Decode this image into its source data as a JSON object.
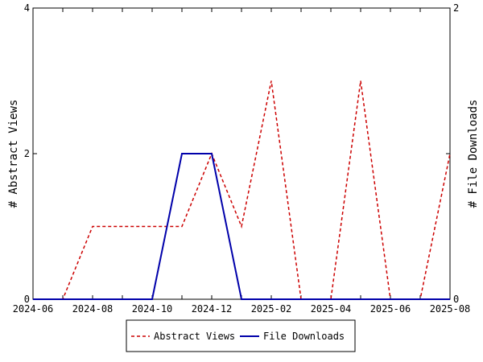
{
  "chart_data": {
    "type": "line",
    "x": [
      "2024-06",
      "2024-07",
      "2024-08",
      "2024-09",
      "2024-10",
      "2024-11",
      "2024-12",
      "2025-01",
      "2025-02",
      "2025-03",
      "2025-04",
      "2025-05",
      "2025-06",
      "2025-07",
      "2025-08"
    ],
    "x_tick_labels": [
      "2024-06",
      "2024-08",
      "2024-10",
      "2024-12",
      "2025-02",
      "2025-04",
      "2025-06",
      "2025-08"
    ],
    "ylabel_left": "# Abstract Views",
    "ylabel_right": "# File Downloads",
    "y_left_range": [
      0,
      4
    ],
    "y_left_ticks": [
      "0",
      "2",
      "4"
    ],
    "y_right_range": [
      0,
      2
    ],
    "y_right_ticks": [
      "0",
      "1",
      "2"
    ],
    "grid": false,
    "legend_position": "bottom",
    "series": [
      {
        "name": "Abstract Views",
        "axis": "left",
        "color": "#cc0000",
        "style": "dashed",
        "values": [
          0,
          0,
          1,
          1,
          1,
          1,
          2,
          1,
          3,
          0,
          0,
          3,
          0,
          0,
          2
        ]
      },
      {
        "name": "File Downloads",
        "axis": "right",
        "color": "#0000aa",
        "style": "solid",
        "values": [
          0,
          0,
          0,
          0,
          0,
          1,
          1,
          0,
          0,
          0,
          0,
          0,
          0,
          0,
          0
        ]
      }
    ]
  }
}
